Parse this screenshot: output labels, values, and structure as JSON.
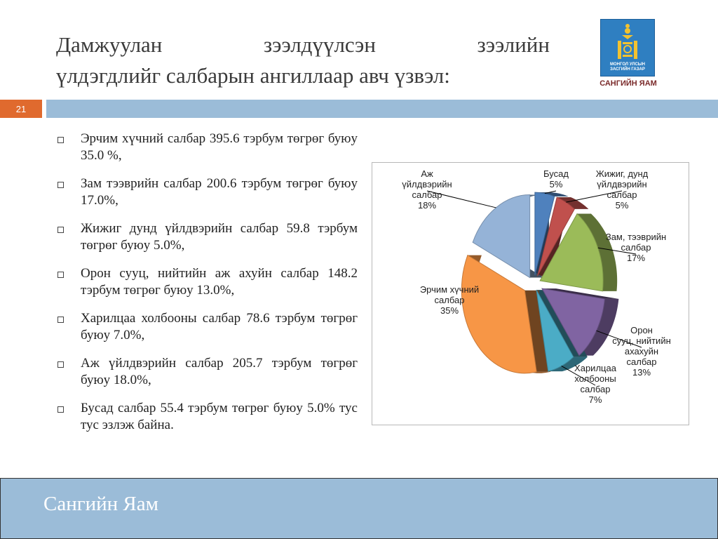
{
  "title": {
    "line1_words": [
      "Дамжуулан",
      "зээлдүүлсэн",
      "зээлийн"
    ],
    "line2": "үлдэгдлийг салбарын ангиллаар авч үзвэл:"
  },
  "logo": {
    "text_line1": "МОНГОЛ УЛСЫН",
    "text_line2": "ЗАСГИЙН ГАЗАР",
    "caption": "САНГИЙН ЯАМ"
  },
  "slide_number": "21",
  "bullets": [
    "Эрчим хүчний салбар 395.6 тэрбум төгрөг буюу 35.0 %,",
    "Зам тээврийн салбар 200.6 тэрбум төгрөг буюу 17.0%,",
    "Жижиг дунд үйлдвэрийн салбар 59.8 тэрбум төгрөг буюу 5.0%,",
    "Орон сууц, нийтийн аж ахуйн салбар 148.2 тэрбум төгрөг буюу 13.0%,",
    "Харилцаа холбооны салбар 78.6 тэрбум төгрөг буюу 7.0%,",
    "Аж үйлдвэрийн салбар 205.7 тэрбум төгрөг буюу 18.0%,",
    "Бусад салбар 55.4 тэрбум төгрөг буюу 5.0% тус тус эзлэж байна."
  ],
  "chart_data": {
    "type": "pie",
    "style": "exploded-3d",
    "slices": [
      {
        "label_lines": [
          "Бусад",
          "5%"
        ],
        "value": 5,
        "color": "#4f81bd"
      },
      {
        "label_lines": [
          "Жижиг, дунд",
          "үйлдвэрийн",
          "салбар",
          "5%"
        ],
        "value": 5,
        "color": "#c0504d"
      },
      {
        "label_lines": [
          "Зам, тээврийн",
          "салбар",
          "17%"
        ],
        "value": 17,
        "color": "#9bbb59"
      },
      {
        "label_lines": [
          "Орон",
          "сууц, нийтийн",
          "ахахуйн",
          "салбар",
          "13%"
        ],
        "value": 13,
        "color": "#8064a2"
      },
      {
        "label_lines": [
          "Харилцаа",
          "холбооны",
          "салбар",
          "7%"
        ],
        "value": 7,
        "color": "#4bacc6"
      },
      {
        "label_lines": [
          "Эрчим хүчний",
          "салбар",
          "35%"
        ],
        "value": 35,
        "color": "#f79646"
      },
      {
        "label_lines": [
          "Аж",
          "үйлдвэрийн",
          "салбар",
          "18%"
        ],
        "value": 18,
        "color": "#95b3d7"
      }
    ]
  },
  "footer": {
    "text": "Сангийн Яам"
  }
}
